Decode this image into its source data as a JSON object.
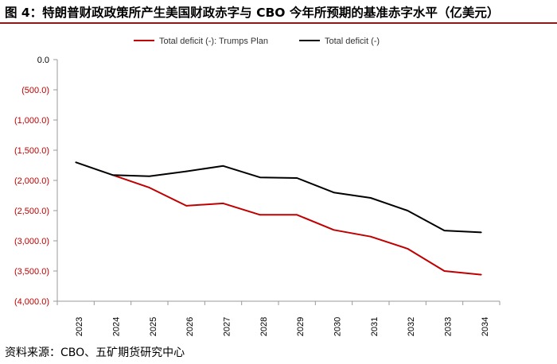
{
  "header": {
    "title": "图 4：特朗普财政政策所产生美国财政赤字与 CBO 今年所预期的基准赤字水平（亿美元）"
  },
  "footer": {
    "source": "资料来源：CBO、五矿期货研究中心"
  },
  "chart_data": {
    "type": "line",
    "categories": [
      "2023",
      "2024",
      "2025",
      "2026",
      "2027",
      "2028",
      "2029",
      "2030",
      "2031",
      "2032",
      "2033",
      "2034"
    ],
    "y_ticks": [
      0,
      -500,
      -1000,
      -1500,
      -2000,
      -2500,
      -3000,
      -3500,
      -4000
    ],
    "y_tick_labels": [
      "0.0",
      "(500.0)",
      "(1,000.0)",
      "(1,500.0)",
      "(2,000.0)",
      "(2,500.0)",
      "(3,000.0)",
      "(3,500.0)",
      "(4,000.0)"
    ],
    "ylim": [
      -4000,
      0
    ],
    "grid": false,
    "legend_position": "top",
    "series": [
      {
        "name": "Total deficit (-): Trumps Plan",
        "color": "#c00000",
        "values": [
          null,
          -1910,
          -2120,
          -2420,
          -2380,
          -2570,
          -2570,
          -2820,
          -2930,
          -3130,
          -3500,
          -3560
        ]
      },
      {
        "name": "Total deficit (-)",
        "color": "#000000",
        "values": [
          -1700,
          -1910,
          -1930,
          -1850,
          -1760,
          -1950,
          -1960,
          -2200,
          -2290,
          -2500,
          -2830,
          -2860
        ]
      }
    ],
    "colors": {
      "axis": "#999999",
      "tick_label_color": "#c00000",
      "x_label_color": "#000000"
    }
  }
}
